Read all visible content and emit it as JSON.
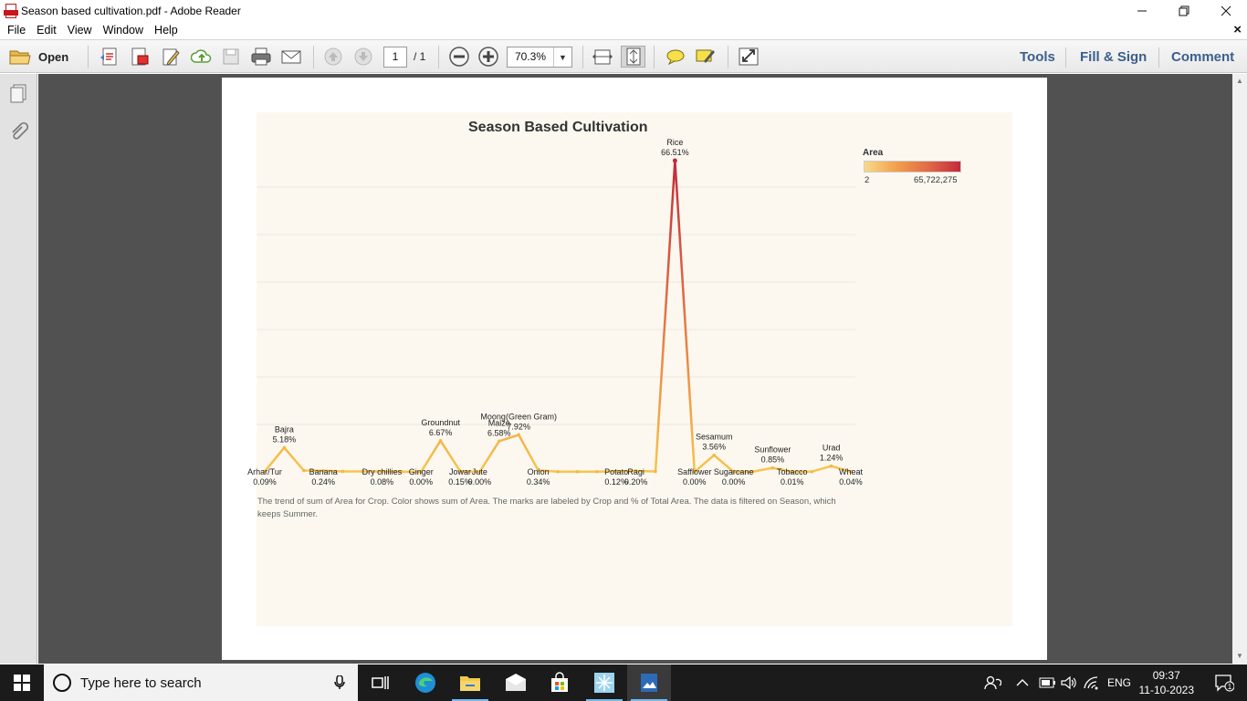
{
  "window": {
    "title": "Season based cultivation.pdf - Adobe Reader",
    "minimize": "—",
    "maximize": "❐",
    "close": "✕"
  },
  "menu": {
    "items": [
      "File",
      "Edit",
      "View",
      "Window",
      "Help"
    ],
    "close": "×"
  },
  "toolbar": {
    "open_label": "Open",
    "page_current": "1",
    "page_total": "/ 1",
    "zoom": "70.3%",
    "tools": "Tools",
    "fill_sign": "Fill & Sign",
    "comment": "Comment"
  },
  "chart": {
    "title": "Season Based Cultivation",
    "caption": "The trend of sum of Area for Crop.  Color shows sum of Area.  The marks are labeled by Crop and % of Total Area. The data is filtered on Season, which keeps Summer.",
    "legend_title": "Area",
    "legend_min": "2",
    "legend_max": "65,722,275",
    "color_low": "#f6c54d",
    "color_high": "#c42a3c"
  },
  "chart_data": {
    "type": "line",
    "title": "Season Based Cultivation",
    "xlabel": "",
    "ylabel": "",
    "ylim": [
      0,
      66.51
    ],
    "grid": true,
    "legend": "top-right",
    "points": [
      {
        "crop": "Arhar/Tur",
        "pct": 0.09,
        "label": "0.09%",
        "labeled": true
      },
      {
        "crop": "Bajra",
        "pct": 5.18,
        "label": "5.18%",
        "labeled": true
      },
      {
        "crop": "",
        "pct": 0.3,
        "label": "",
        "labeled": false
      },
      {
        "crop": "Banana",
        "pct": 0.24,
        "label": "0.24%",
        "labeled": true
      },
      {
        "crop": "",
        "pct": 0.1,
        "label": "",
        "labeled": false
      },
      {
        "crop": "",
        "pct": 0.1,
        "label": "",
        "labeled": false
      },
      {
        "crop": "Dry chillies",
        "pct": 0.08,
        "label": "0.08%",
        "labeled": true
      },
      {
        "crop": "",
        "pct": 0.05,
        "label": "",
        "labeled": false
      },
      {
        "crop": "Ginger",
        "pct": 0.0,
        "label": "0.00%",
        "labeled": true
      },
      {
        "crop": "Groundnut",
        "pct": 6.67,
        "label": "6.67%",
        "labeled": true
      },
      {
        "crop": "Jowar",
        "pct": 0.15,
        "label": "0.15%",
        "labeled": true
      },
      {
        "crop": "Jute",
        "pct": 0.0,
        "label": "0.00%",
        "labeled": true
      },
      {
        "crop": "Maize",
        "pct": 6.58,
        "label": "6.58%",
        "labeled": true
      },
      {
        "crop": "Moong(Green Gram)",
        "pct": 7.92,
        "label": "7.92%",
        "labeled": true
      },
      {
        "crop": "Onion",
        "pct": 0.34,
        "label": "0.34%",
        "labeled": true
      },
      {
        "crop": "",
        "pct": 0.05,
        "label": "",
        "labeled": false
      },
      {
        "crop": "",
        "pct": 0.05,
        "label": "",
        "labeled": false
      },
      {
        "crop": "",
        "pct": 0.05,
        "label": "",
        "labeled": false
      },
      {
        "crop": "Potato",
        "pct": 0.12,
        "label": "0.12%",
        "labeled": true
      },
      {
        "crop": "Ragi",
        "pct": 0.2,
        "label": "0.20%",
        "labeled": true
      },
      {
        "crop": "",
        "pct": 0.1,
        "label": "",
        "labeled": false
      },
      {
        "crop": "Rice",
        "pct": 66.51,
        "label": "66.51%",
        "labeled": true
      },
      {
        "crop": "Safflower",
        "pct": 0.0,
        "label": "0.00%",
        "labeled": true
      },
      {
        "crop": "Sesamum",
        "pct": 3.56,
        "label": "3.56%",
        "labeled": true
      },
      {
        "crop": "Sugarcane",
        "pct": 0.0,
        "label": "0.00%",
        "labeled": true
      },
      {
        "crop": "",
        "pct": 0.05,
        "label": "",
        "labeled": false
      },
      {
        "crop": "Sunflower",
        "pct": 0.85,
        "label": "0.85%",
        "labeled": true
      },
      {
        "crop": "Tobacco",
        "pct": 0.01,
        "label": "0.01%",
        "labeled": true
      },
      {
        "crop": "",
        "pct": 0.05,
        "label": "",
        "labeled": false
      },
      {
        "crop": "Urad",
        "pct": 1.24,
        "label": "1.24%",
        "labeled": true
      },
      {
        "crop": "Wheat",
        "pct": 0.04,
        "label": "0.04%",
        "labeled": true
      }
    ]
  },
  "taskbar": {
    "search_placeholder": "Type here to search",
    "language": "ENG",
    "time": "09:37",
    "date": "11-10-2023",
    "notification_count": "1"
  }
}
